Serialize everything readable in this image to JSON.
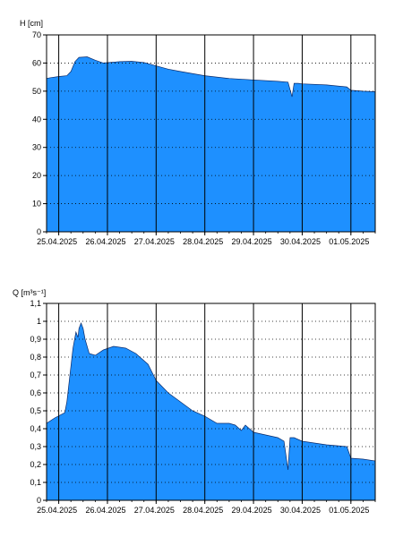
{
  "colors": {
    "fill": "#1e90ff",
    "frame": "#000000",
    "grid": "#000000",
    "background": "#ffffff"
  },
  "chart_data": [
    {
      "type": "area",
      "ylabel": "H [cm]",
      "ylim": [
        0,
        70
      ],
      "yticks": [
        "0",
        "10",
        "20",
        "30",
        "40",
        "50",
        "60",
        "70"
      ],
      "xlim": [
        "24.04.2025 18:00",
        "01.05.2025 12:00"
      ],
      "day_ticks": [
        "25.04.2025",
        "26.04.2025",
        "27.04.2025",
        "28.04.2025",
        "29.04.2025",
        "30.04.2025",
        "01.05.2025"
      ],
      "grid": true,
      "series": [
        {
          "x": [
            "24.04.2025 18:00",
            "24.04.2025 20:00",
            "25.04.2025 00:00",
            "25.04.2025 04:00",
            "25.04.2025 06:00",
            "25.04.2025 08:00",
            "25.04.2025 10:00",
            "25.04.2025 14:00",
            "25.04.2025 18:00",
            "25.04.2025 22:00",
            "26.04.2025 06:00",
            "26.04.2025 12:00",
            "26.04.2025 18:00",
            "27.04.2025 00:00",
            "27.04.2025 06:00",
            "27.04.2025 12:00",
            "28.04.2025 00:00",
            "28.04.2025 12:00",
            "29.04.2025 00:00",
            "29.04.2025 12:00",
            "29.04.2025 17:00",
            "29.04.2025 19:00",
            "29.04.2025 20:00",
            "29.04.2025 22:00",
            "30.04.2025 00:00",
            "30.04.2025 12:00",
            "30.04.2025 22:00",
            "01.05.2025 00:00",
            "01.05.2025 06:00",
            "01.05.2025 12:00"
          ],
          "values": [
            54.5,
            54.8,
            55.2,
            55.5,
            57,
            60.5,
            62,
            62.2,
            61,
            60,
            60.5,
            60.6,
            60.2,
            59,
            57.8,
            57,
            55.5,
            54.5,
            54,
            53.5,
            53.2,
            48,
            52.8,
            52.8,
            52.6,
            52.2,
            51.5,
            50.3,
            50,
            49.8
          ]
        }
      ]
    },
    {
      "type": "area",
      "ylabel": "Q [m³s⁻¹]",
      "ylim": [
        0,
        1.1
      ],
      "yticks": [
        "0",
        "0,1",
        "0,2",
        "0,3",
        "0,4",
        "0,5",
        "0,6",
        "0,7",
        "0,8",
        "0,9",
        "1",
        "1,1"
      ],
      "xlim": [
        "24.04.2025 18:00",
        "01.05.2025 12:00"
      ],
      "day_ticks": [
        "25.04.2025",
        "26.04.2025",
        "27.04.2025",
        "28.04.2025",
        "29.04.2025",
        "30.04.2025",
        "01.05.2025"
      ],
      "grid": true,
      "series": [
        {
          "x": [
            "24.04.2025 18:00",
            "24.04.2025 22:00",
            "25.04.2025 03:00",
            "25.04.2025 04:00",
            "25.04.2025 07:00",
            "25.04.2025 08:30",
            "25.04.2025 09:30",
            "25.04.2025 10:00",
            "25.04.2025 11:00",
            "25.04.2025 12:00",
            "25.04.2025 13:00",
            "25.04.2025 15:00",
            "25.04.2025 18:00",
            "25.04.2025 22:00",
            "26.04.2025 03:00",
            "26.04.2025 09:00",
            "26.04.2025 14:00",
            "26.04.2025 20:00",
            "27.04.2025 00:00",
            "27.04.2025 06:00",
            "27.04.2025 12:00",
            "27.04.2025 18:00",
            "28.04.2025 00:00",
            "28.04.2025 06:00",
            "28.04.2025 12:00",
            "28.04.2025 15:00",
            "28.04.2025 18:00",
            "28.04.2025 20:00",
            "29.04.2025 00:00",
            "29.04.2025 12:00",
            "29.04.2025 15:00",
            "29.04.2025 17:00",
            "29.04.2025 18:00",
            "29.04.2025 20:00",
            "30.04.2025 00:00",
            "30.04.2025 12:00",
            "30.04.2025 22:00",
            "01.05.2025 00:00",
            "01.05.2025 06:00",
            "01.05.2025 12:00"
          ],
          "values": [
            0.43,
            0.46,
            0.49,
            0.55,
            0.85,
            0.94,
            0.91,
            0.96,
            0.99,
            0.96,
            0.9,
            0.82,
            0.81,
            0.84,
            0.86,
            0.85,
            0.82,
            0.76,
            0.67,
            0.6,
            0.55,
            0.5,
            0.47,
            0.43,
            0.43,
            0.42,
            0.39,
            0.42,
            0.38,
            0.35,
            0.33,
            0.17,
            0.35,
            0.35,
            0.33,
            0.31,
            0.3,
            0.235,
            0.23,
            0.22
          ]
        }
      ]
    }
  ]
}
